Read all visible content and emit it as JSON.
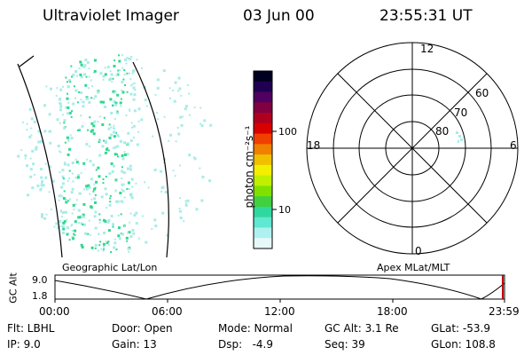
{
  "header": {
    "instrument": "Ultraviolet Imager",
    "date": "03 Jun 00",
    "time": "23:55:31 UT"
  },
  "colorbar": {
    "label": "photon cm⁻²s⁻¹",
    "ticks": [
      "100",
      "10"
    ],
    "colors": [
      "#000020",
      "#200050",
      "#500060",
      "#800040",
      "#b00020",
      "#d80000",
      "#f04000",
      "#f08000",
      "#f0c000",
      "#f0f000",
      "#c0f000",
      "#80e000",
      "#40d040",
      "#30d8a0",
      "#60e8d0",
      "#b0f0f0",
      "#e8f8f8"
    ]
  },
  "left_map": {
    "label": "Geographic Lat/Lon",
    "pixel_color": "#30d890",
    "faint_color": "#a8ece8"
  },
  "polar_plot": {
    "label": "Apex MLat/MLT",
    "lat_labels": [
      "60",
      "70",
      "80"
    ],
    "mlt_labels": {
      "top": "12",
      "left": "18",
      "right": "6",
      "bottom": "0"
    }
  },
  "altitude_plot": {
    "ylabel": "GC Alt",
    "ytick_top": "9.0",
    "ytick_bottom": "1.8",
    "xticks": [
      "00:00",
      "06:00",
      "12:00",
      "18:00",
      "23:59"
    ],
    "marker_color": "#c00000"
  },
  "footer": {
    "row1": [
      "Flt: LBHL",
      "Door: Open",
      "Mode: Normal",
      "GC Alt: 3.1 Re",
      "GLat: -53.9"
    ],
    "row2": [
      "IP: 9.0",
      "Gain: 13",
      "Dsp:   -4.9",
      "Seq: 39",
      "GLon: 108.8"
    ]
  }
}
